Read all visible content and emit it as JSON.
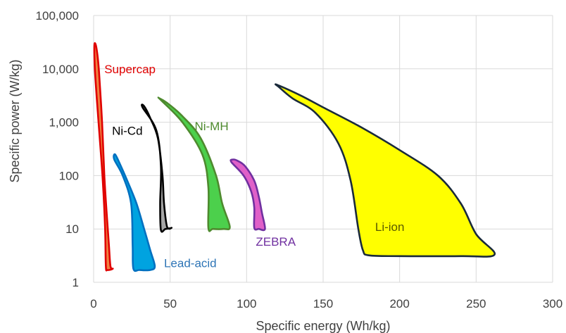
{
  "chart_data": {
    "type": "area",
    "xlabel": "Specific energy (Wh/kg)",
    "ylabel": "Specific power (W/kg)",
    "xlim": [
      0,
      300
    ],
    "ylim": [
      1,
      100000
    ],
    "y_scale": "log",
    "grid": true,
    "x_ticks": [
      {
        "value": 0,
        "label": "0"
      },
      {
        "value": 50,
        "label": "50"
      },
      {
        "value": 100,
        "label": "100"
      },
      {
        "value": 150,
        "label": "150"
      },
      {
        "value": 200,
        "label": "200"
      },
      {
        "value": 250,
        "label": "250"
      },
      {
        "value": 300,
        "label": "300"
      }
    ],
    "y_ticks": [
      {
        "value": 1,
        "label": "1"
      },
      {
        "value": 10,
        "label": "10"
      },
      {
        "value": 100,
        "label": "100"
      },
      {
        "value": 1000,
        "label": "1,000"
      },
      {
        "value": 10000,
        "label": "10,000"
      },
      {
        "value": 100000,
        "label": "100,000"
      }
    ],
    "series": [
      {
        "name": "Supercap",
        "fill": "#f08040",
        "stroke": "#e00000",
        "label_color": "#e00000",
        "label_at": [
          7,
          10000
        ],
        "outline": [
          [
            0.5,
            28000
          ],
          [
            1.8,
            25000
          ],
          [
            3.5,
            9000
          ],
          [
            5.5,
            1000
          ],
          [
            7,
            100
          ],
          [
            8.5,
            20
          ],
          [
            10,
            5
          ],
          [
            11,
            2
          ],
          [
            12.5,
            1.8
          ],
          [
            9,
            1.7
          ],
          [
            8,
            2
          ],
          [
            7.5,
            10
          ],
          [
            6,
            80
          ],
          [
            4,
            500
          ],
          [
            2,
            3000
          ],
          [
            0.8,
            10000
          ]
        ]
      },
      {
        "name": "Lead-acid",
        "fill": "#00a3e0",
        "stroke": "#0070c0",
        "label_color": "#2e75b6",
        "label_at": [
          46,
          2.3
        ],
        "outline": [
          [
            14,
            250
          ],
          [
            17,
            170
          ],
          [
            22,
            80
          ],
          [
            28,
            30
          ],
          [
            33,
            10
          ],
          [
            37,
            4
          ],
          [
            40,
            2
          ],
          [
            37,
            1.7
          ],
          [
            30,
            1.7
          ],
          [
            26,
            1.8
          ],
          [
            25.5,
            5
          ],
          [
            24.5,
            30
          ],
          [
            19,
            100
          ],
          [
            13.5,
            200
          ]
        ]
      },
      {
        "name": "Ni-Cd",
        "fill": "#a6a6a6",
        "stroke": "#000000",
        "label_color": "#000000",
        "label_at": [
          12,
          700
        ],
        "outline": [
          [
            33,
            2000
          ],
          [
            37,
            1200
          ],
          [
            42,
            500
          ],
          [
            45,
            100
          ],
          [
            46,
            30
          ],
          [
            48,
            11
          ],
          [
            51,
            10.5
          ],
          [
            47,
            10
          ],
          [
            44,
            9.5
          ],
          [
            43.5,
            30
          ],
          [
            44,
            150
          ],
          [
            41,
            700
          ],
          [
            32,
            1900
          ]
        ]
      },
      {
        "name": "Ni-MH",
        "fill": "#4cd04c",
        "stroke": "#4e8a2e",
        "label_color": "#4e8a2e",
        "label_at": [
          66,
          850
        ],
        "outline": [
          [
            43,
            2800
          ],
          [
            48,
            2300
          ],
          [
            58,
            1300
          ],
          [
            70,
            500
          ],
          [
            80,
            100
          ],
          [
            84,
            30
          ],
          [
            89,
            11
          ],
          [
            85,
            10
          ],
          [
            78,
            10
          ],
          [
            75,
            10.5
          ],
          [
            75,
            60
          ],
          [
            71,
            250
          ],
          [
            58,
            1000
          ],
          [
            44,
            2600
          ]
        ]
      },
      {
        "name": "ZEBRA",
        "fill": "#e060c8",
        "stroke": "#7030a0",
        "label_color": "#7030a0",
        "label_at": [
          106,
          5.8
        ],
        "outline": [
          [
            91,
            200
          ],
          [
            94,
            190
          ],
          [
            99,
            150
          ],
          [
            105,
            80
          ],
          [
            108,
            40
          ],
          [
            110,
            20
          ],
          [
            112,
            10
          ],
          [
            108,
            10
          ],
          [
            105,
            10.5
          ],
          [
            105,
            25
          ],
          [
            103,
            50
          ],
          [
            98,
            100
          ],
          [
            90,
            180
          ]
        ]
      },
      {
        "name": "Li-ion",
        "fill": "#ffff00",
        "stroke": "#1a2a3a",
        "label_color": "#595900",
        "label_at": [
          184,
          11
        ],
        "outline": [
          [
            120,
            5000
          ],
          [
            135,
            3200
          ],
          [
            150,
            1900
          ],
          [
            175,
            800
          ],
          [
            200,
            300
          ],
          [
            225,
            100
          ],
          [
            240,
            30
          ],
          [
            250,
            8
          ],
          [
            262,
            3.3
          ],
          [
            240,
            3.1
          ],
          [
            200,
            3.1
          ],
          [
            180,
            3.2
          ],
          [
            176,
            4
          ],
          [
            173,
            10
          ],
          [
            168,
            80
          ],
          [
            160,
            400
          ],
          [
            145,
            1500
          ],
          [
            130,
            2800
          ],
          [
            121,
            4600
          ]
        ]
      }
    ]
  }
}
